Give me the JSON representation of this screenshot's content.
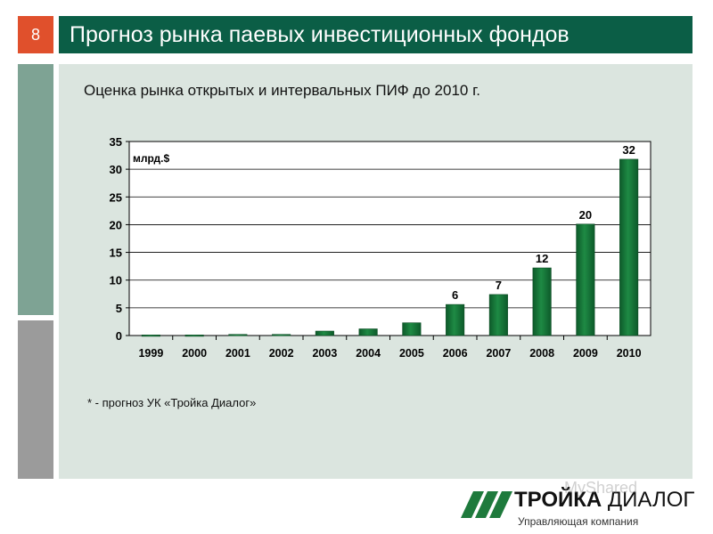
{
  "slide": {
    "number": "8",
    "title": "Прогноз рынка паевых инвестиционных фондов",
    "subtitle": "Оценка рынка открытых и интервальных ПИФ до 2010 г.",
    "footnote": "* - прогноз УК «Тройка Диалог»"
  },
  "logo": {
    "name_bold": "ТРОЙКА",
    "name_regular": "ДИАЛОГ",
    "tagline": "Управляющая компания",
    "watermark": "MyShared"
  },
  "colors": {
    "accent_orange": "#e0502c",
    "title_green": "#0b5e46",
    "bar_green": "#1e8a44",
    "panel_bg": "#dbe5df"
  },
  "chart_data": {
    "type": "bar",
    "categories": [
      "1999",
      "2000",
      "2001",
      "2002",
      "2003",
      "2004",
      "2005",
      "2006",
      "2007",
      "2008",
      "2009",
      "2010"
    ],
    "values": [
      0.1,
      0.1,
      0.2,
      0.2,
      0.8,
      1.2,
      2.3,
      5.6,
      7.4,
      12.2,
      20.1,
      31.8
    ],
    "data_labels": [
      "",
      "",
      "",
      "",
      "",
      "",
      "",
      "6",
      "7",
      "12",
      "20",
      "32"
    ],
    "unit_label": "млрд.$",
    "ylim": [
      0,
      35
    ],
    "yticks": [
      0,
      5,
      10,
      15,
      20,
      25,
      30,
      35
    ],
    "grid": true,
    "legend": "none"
  }
}
